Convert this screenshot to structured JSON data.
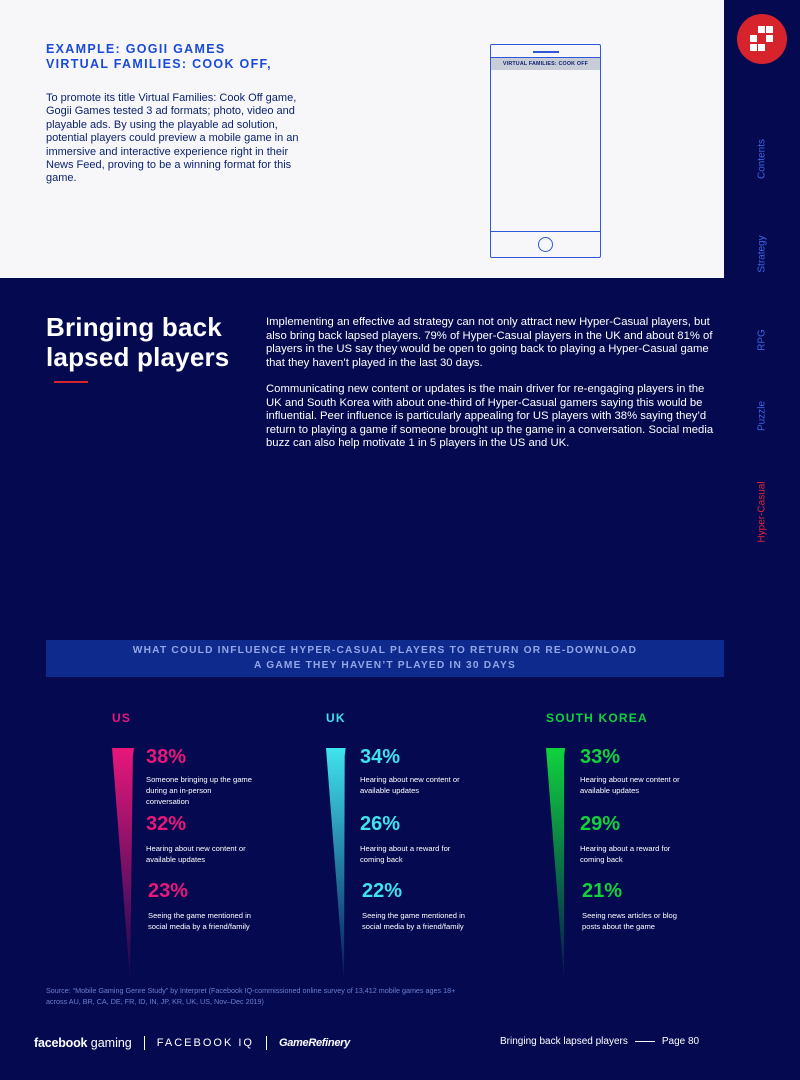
{
  "example": {
    "heading_line1": "EXAMPLE: GOGII GAMES",
    "heading_line2": "VIRTUAL FAMILIES: COOK OFF,",
    "body": "To promote its title Virtual Families: Cook Off game, Gogii Games tested 3 ad formats; photo, video and playable ads. By using the playable ad solution, potential players could preview a mobile game in an immersive and interactive experience right in their News Feed, proving to be a winning format for this game.",
    "phone_screen_label": "VIRTUAL FAMILIES: COOK OFF"
  },
  "sidebar": {
    "logo_icon": "grid-logo-icon",
    "items": [
      {
        "label": "Contents"
      },
      {
        "label": "Strategy"
      },
      {
        "label": "RPG"
      },
      {
        "label": "Puzzle"
      },
      {
        "label": "Hyper-Casual",
        "active": true
      }
    ]
  },
  "section": {
    "title": "Bringing back lapsed players",
    "paragraph1": "Implementing an effective ad strategy can not only attract new Hyper-Casual players, but also bring back lapsed players. 79% of Hyper-Casual players in the UK and about 81% of players in the US say they would be open to going back to playing a Hyper-Casual game that they haven’t played in the last 30 days.",
    "paragraph2": "Communicating new content or updates is the main driver for re-engaging players in the UK and South Korea with about one-third of Hyper-Casual gamers saying this would be influential. Peer influence is particularly appealing for US players with 38% saying they’d return to playing a game if someone brought up the game in a conversation. Social media buzz can also help motivate 1 in 5 players in the US and UK."
  },
  "chart_data": {
    "type": "table",
    "title_line1": "WHAT COULD INFLUENCE HYPER-CASUAL PLAYERS TO RETURN OR RE-DOWNLOAD",
    "title_line2": "A  GAME  THEY HAVEN’T PLAYED IN 30 DAYS",
    "unit": "%",
    "series": [
      {
        "name": "US",
        "color": "#e8177a",
        "items": [
          {
            "value": 38,
            "label": "38%",
            "description": "Someone bringing up the game during an in-person conversation"
          },
          {
            "value": 32,
            "label": "32%",
            "description": "Hearing about new content or available updates"
          },
          {
            "value": 23,
            "label": "23%",
            "description": "Seeing the game mentioned in social media by a friend/family"
          }
        ]
      },
      {
        "name": "UK",
        "color": "#3fe3ee",
        "items": [
          {
            "value": 34,
            "label": "34%",
            "description": "Hearing about new content or available updates"
          },
          {
            "value": 26,
            "label": "26%",
            "description": "Hearing about a reward for coming back"
          },
          {
            "value": 22,
            "label": "22%",
            "description": "Seeing the game mentioned in social media by a friend/family"
          }
        ]
      },
      {
        "name": "SOUTH KOREA",
        "color": "#10d23c",
        "items": [
          {
            "value": 33,
            "label": "33%",
            "description": "Hearing about new content or available updates"
          },
          {
            "value": 29,
            "label": "29%",
            "description": "Hearing about a reward for coming back"
          },
          {
            "value": 21,
            "label": "21%",
            "description": "Seeing news articles or blog posts about the game"
          }
        ]
      }
    ],
    "source": "Source: “Mobile Gaming Genre Study” by Interpret (Facebook IQ-commissioned online survey of 13,412 mobile games ages 18+ across AU, BR, CA, DE, FR, ID, IN, JP, KR, UK, US, Nov–Dec 2019)"
  },
  "footer": {
    "brand_fb": "facebook",
    "brand_gaming": "gaming",
    "brand_iq": "FACEBOOK IQ",
    "brand_gr": "GameRefinery",
    "page_title": "Bringing back lapsed players",
    "page_number": "Page 80"
  }
}
